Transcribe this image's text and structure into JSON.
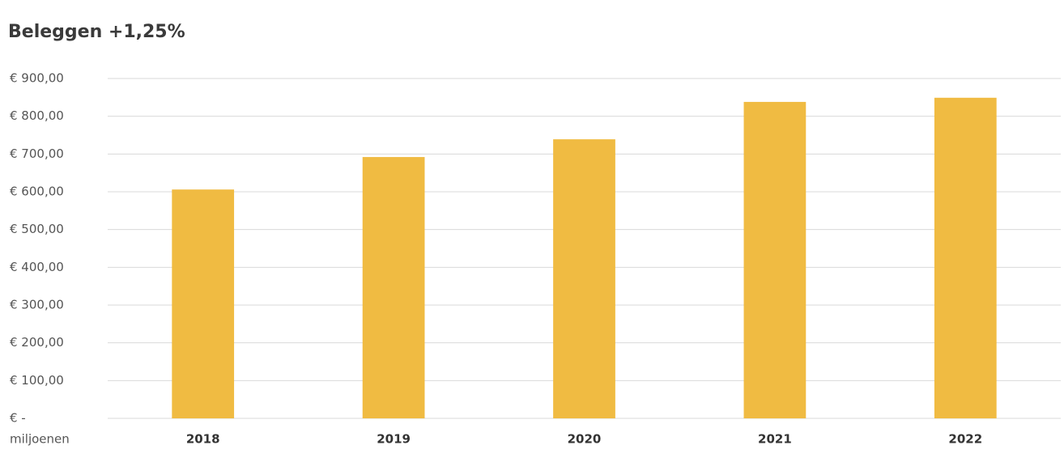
{
  "chart_data": {
    "type": "bar",
    "title": "Beleggen +1,25%",
    "categories": [
      "2018",
      "2019",
      "2020",
      "2021",
      "2022"
    ],
    "values": [
      606,
      692,
      739,
      838,
      849
    ],
    "color": "#f0bb42",
    "ylim": [
      0,
      900
    ],
    "yticks": [
      {
        "value": 0,
        "label": "€ -"
      },
      {
        "value": 100,
        "label": "€ 100,00"
      },
      {
        "value": 200,
        "label": "€ 200,00"
      },
      {
        "value": 300,
        "label": "€ 300,00"
      },
      {
        "value": 400,
        "label": "€ 400,00"
      },
      {
        "value": 500,
        "label": "€ 500,00"
      },
      {
        "value": 600,
        "label": "€ 600,00"
      },
      {
        "value": 700,
        "label": "€ 700,00"
      },
      {
        "value": 800,
        "label": "€ 800,00"
      },
      {
        "value": 900,
        "label": "€ 900,00"
      }
    ],
    "y_unit_label": "miljoenen",
    "grid": true
  }
}
